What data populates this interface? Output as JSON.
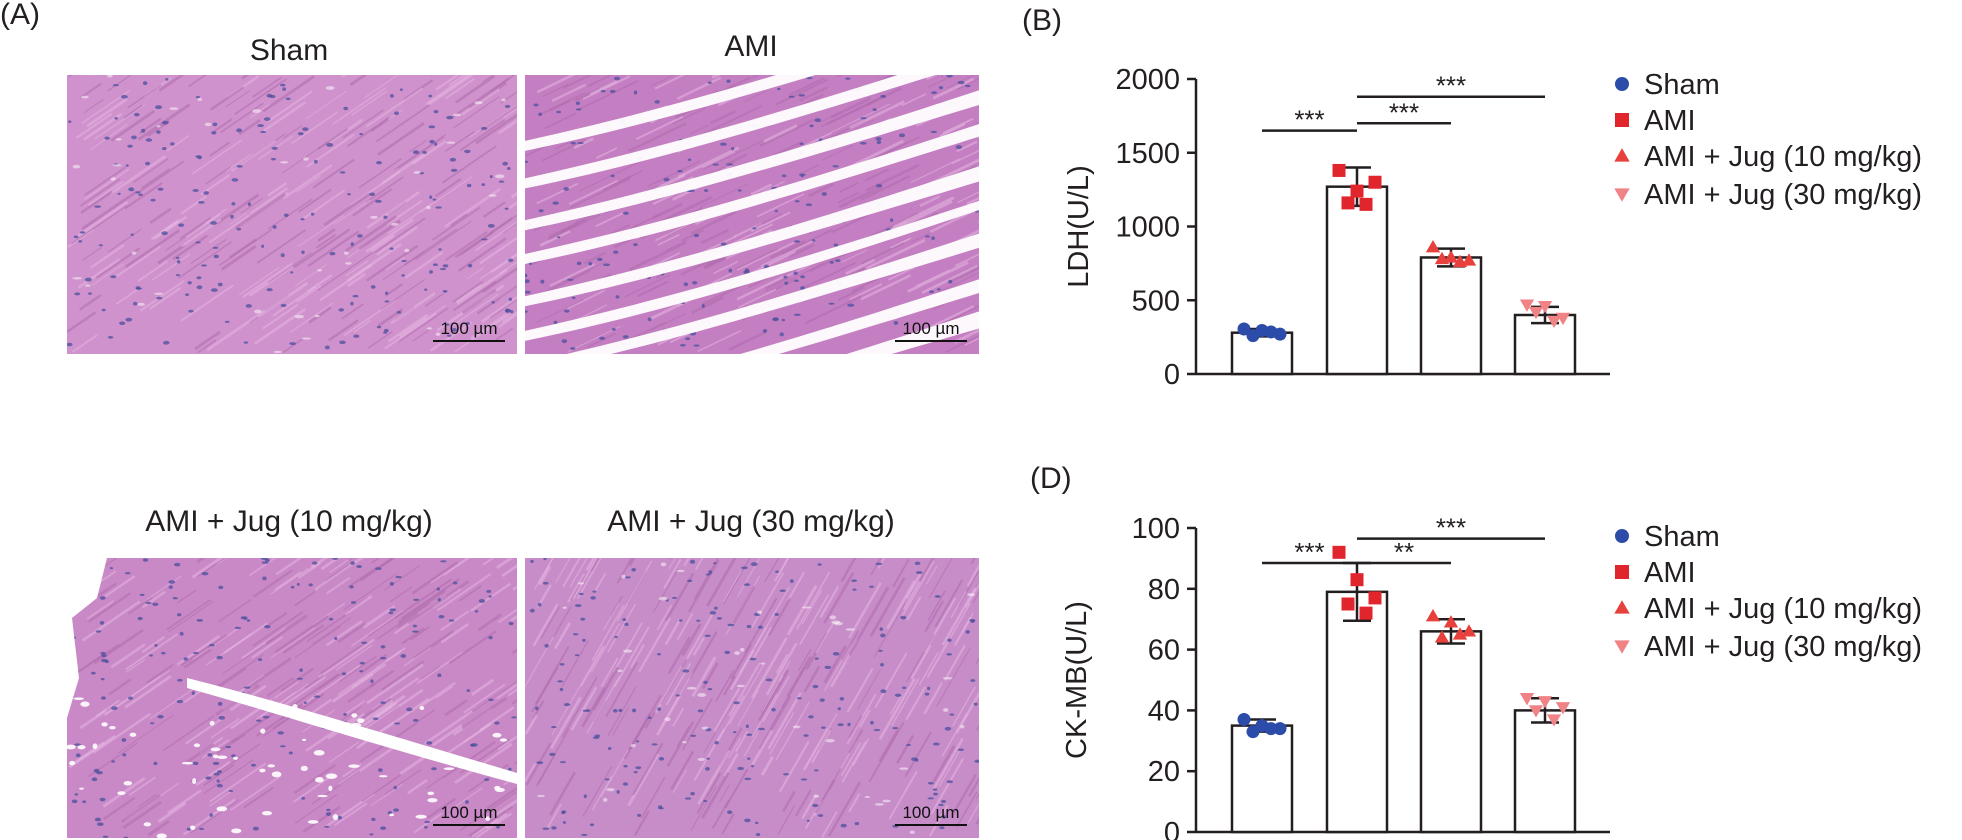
{
  "panel_A": {
    "letter": "(A)",
    "images": [
      {
        "title": "Sham",
        "scale_label": "100 µm",
        "color": "#cf92cc",
        "damage": 0
      },
      {
        "title": "AMI",
        "scale_label": "100 µm",
        "color": "#c47fc2",
        "damage": 2
      },
      {
        "title": "AMI + Jug (10 mg/kg)",
        "scale_label": "100 µm",
        "color": "#c989c6",
        "damage": 1
      },
      {
        "title": "AMI + Jug (30 mg/kg)",
        "scale_label": "100 µm",
        "color": "#c78dc8",
        "damage": 0
      }
    ]
  },
  "chart_data": [
    {
      "type": "bar",
      "panel": "(B)",
      "title": "",
      "ylabel": "LDH(U/L)",
      "xlabel": "",
      "categories": [
        "Sham",
        "AMI",
        "AMI + Jug (10 mg/kg)",
        "AMI + Jug (30 mg/kg)"
      ],
      "values": [
        280,
        1270,
        790,
        400
      ],
      "errors": [
        25,
        130,
        60,
        55
      ],
      "points": [
        [
          305,
          295,
          270,
          260,
          285
        ],
        [
          1380,
          1240,
          1300,
          1160,
          1150
        ],
        [
          860,
          790,
          770,
          780,
          760
        ],
        [
          470,
          460,
          380,
          420,
          360
        ]
      ],
      "ylim": [
        0,
        2000
      ],
      "yticks": [
        0,
        500,
        1000,
        1500,
        2000
      ],
      "significance": [
        {
          "from": 0,
          "to": 1,
          "label": "***",
          "y": 1650
        },
        {
          "from": 1,
          "to": 2,
          "label": "***",
          "y": 1700
        },
        {
          "from": 1,
          "to": 3,
          "label": "***",
          "y": 1880
        }
      ],
      "legend": [
        "Sham",
        "AMI",
        "AMI + Jug (10 mg/kg)",
        "AMI + Jug (30 mg/kg)"
      ]
    },
    {
      "type": "bar",
      "panel": "(D)",
      "title": "",
      "ylabel": "CK-MB(U/L)",
      "xlabel": "",
      "categories": [
        "Sham",
        "AMI",
        "AMI + Jug (10 mg/kg)",
        "AMI + Jug (30 mg/kg)"
      ],
      "values": [
        35,
        79,
        66,
        40
      ],
      "errors": [
        2,
        9.5,
        4,
        4
      ],
      "points": [
        [
          37,
          35,
          34,
          33,
          34
        ],
        [
          92,
          83,
          77,
          75,
          72
        ],
        [
          71,
          69,
          66,
          64,
          65
        ],
        [
          44,
          43,
          41,
          40,
          37
        ]
      ],
      "ylim": [
        0,
        100
      ],
      "yticks": [
        0,
        20,
        40,
        60,
        80,
        100
      ],
      "significance": [
        {
          "from": 0,
          "to": 1,
          "label": "***",
          "y": 88.5
        },
        {
          "from": 1,
          "to": 2,
          "label": "**",
          "y": 88.5
        },
        {
          "from": 1,
          "to": 3,
          "label": "***",
          "y": 96.5
        }
      ],
      "legend": [
        "Sham",
        "AMI",
        "AMI + Jug (10 mg/kg)",
        "AMI + Jug (30 mg/kg)"
      ]
    }
  ],
  "series_style": {
    "colors": [
      "#2b4ca8",
      "#e0262c",
      "#e8413d",
      "#f08386"
    ],
    "markers": [
      "circle",
      "square",
      "triangle-up",
      "triangle-down"
    ]
  }
}
